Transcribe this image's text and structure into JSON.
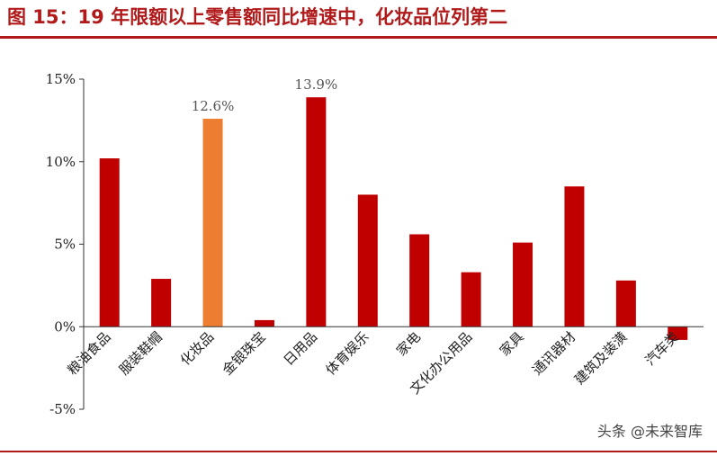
{
  "header": {
    "title": "图 15：19 年限额以上零售额同比增速中，化妆品位列第二"
  },
  "watermark": "头条 @未来智库",
  "colors": {
    "accent": "#b01a1a",
    "bar": "#c00000",
    "highlight": "#ed7d31"
  },
  "chart_data": {
    "type": "bar",
    "categories": [
      "粮油食品",
      "服装鞋帽",
      "化妆品",
      "金银珠宝",
      "日用品",
      "体育娱乐",
      "家电",
      "文化办公用品",
      "家具",
      "通讯器材",
      "建筑及装潢",
      "汽车类"
    ],
    "values": [
      10.2,
      2.9,
      12.6,
      0.4,
      13.9,
      8.0,
      5.6,
      3.3,
      5.1,
      8.5,
      2.8,
      -0.8
    ],
    "highlight_index": 2,
    "data_labels": [
      {
        "index": 2,
        "text": "12.6%"
      },
      {
        "index": 4,
        "text": "13.9%"
      }
    ],
    "yticks": [
      {
        "value": 15,
        "label": "15%"
      },
      {
        "value": 10,
        "label": "10%"
      },
      {
        "value": 5,
        "label": "5%"
      },
      {
        "value": 0,
        "label": "0%"
      },
      {
        "value": -5,
        "label": "-5%"
      }
    ],
    "ylim": [
      -5,
      15
    ],
    "grid": false,
    "legend": "none",
    "title": "",
    "xlabel": "",
    "ylabel": ""
  }
}
